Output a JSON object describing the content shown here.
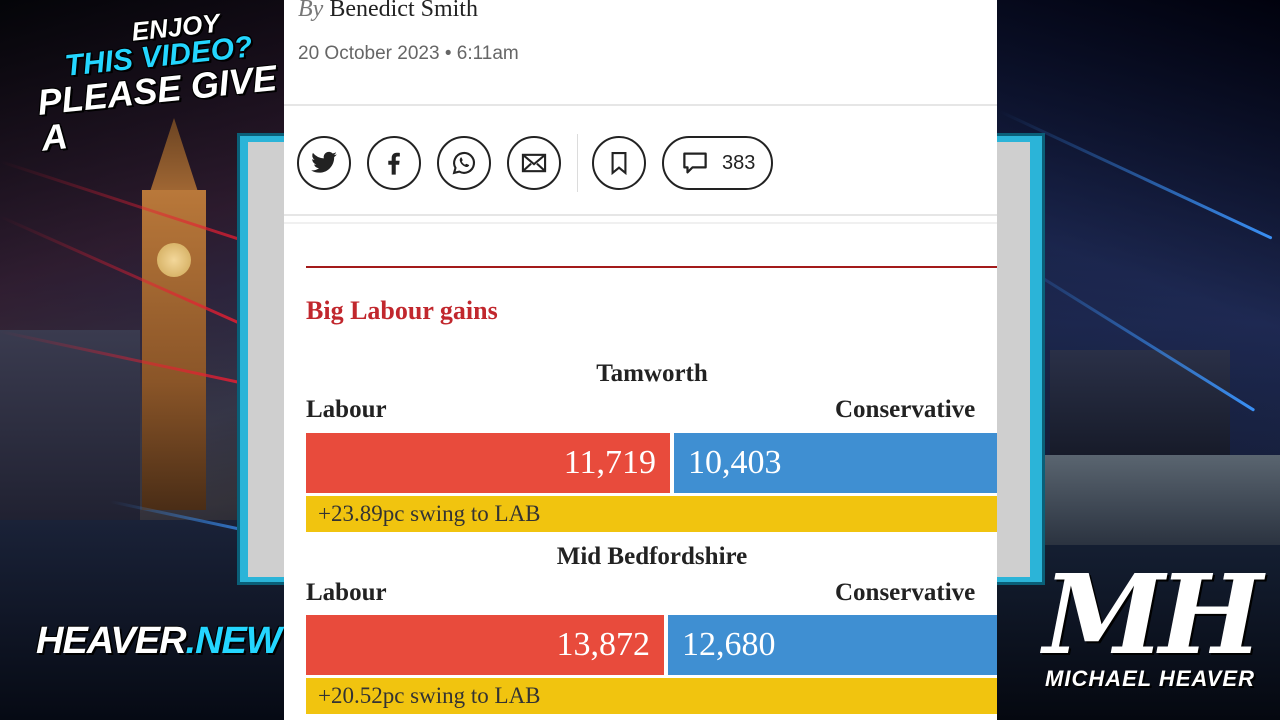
{
  "overlay": {
    "promo_line1": "ENJOY",
    "promo_line2": "THIS VIDEO?",
    "promo_line3": "PLEASE GIVE A",
    "site_name": "HEAVER",
    "site_dot": ".",
    "site_tld": "NEW",
    "logo_mark": "MH",
    "logo_name": "MICHAEL HEAVER"
  },
  "article": {
    "by_prefix": "By",
    "author": "Benedict Smith",
    "date": "20 October 2023 • 6:11am",
    "share": {
      "icons": [
        "twitter-icon",
        "facebook-icon",
        "whatsapp-icon",
        "email-icon",
        "bookmark-icon",
        "comment-icon"
      ],
      "comment_count": "383"
    },
    "section_title": "Big Labour gains",
    "results": [
      {
        "constituency": "Tamworth",
        "left_party": "Labour",
        "right_party": "Conservative",
        "left_votes": "11,719",
        "right_votes": "10,403",
        "swing": "+23.89pc swing to LAB"
      },
      {
        "constituency": "Mid Bedfordshire",
        "left_party": "Labour",
        "right_party": "Conservative",
        "left_votes": "13,872",
        "right_votes": "12,680",
        "swing": "+20.52pc swing to LAB"
      }
    ]
  },
  "colors": {
    "labour": "#e84b3c",
    "conservative": "#3f8fd2",
    "swing": "#f1c40f",
    "section_accent": "#c1272d",
    "brand_cyan": "#24d6ff"
  }
}
